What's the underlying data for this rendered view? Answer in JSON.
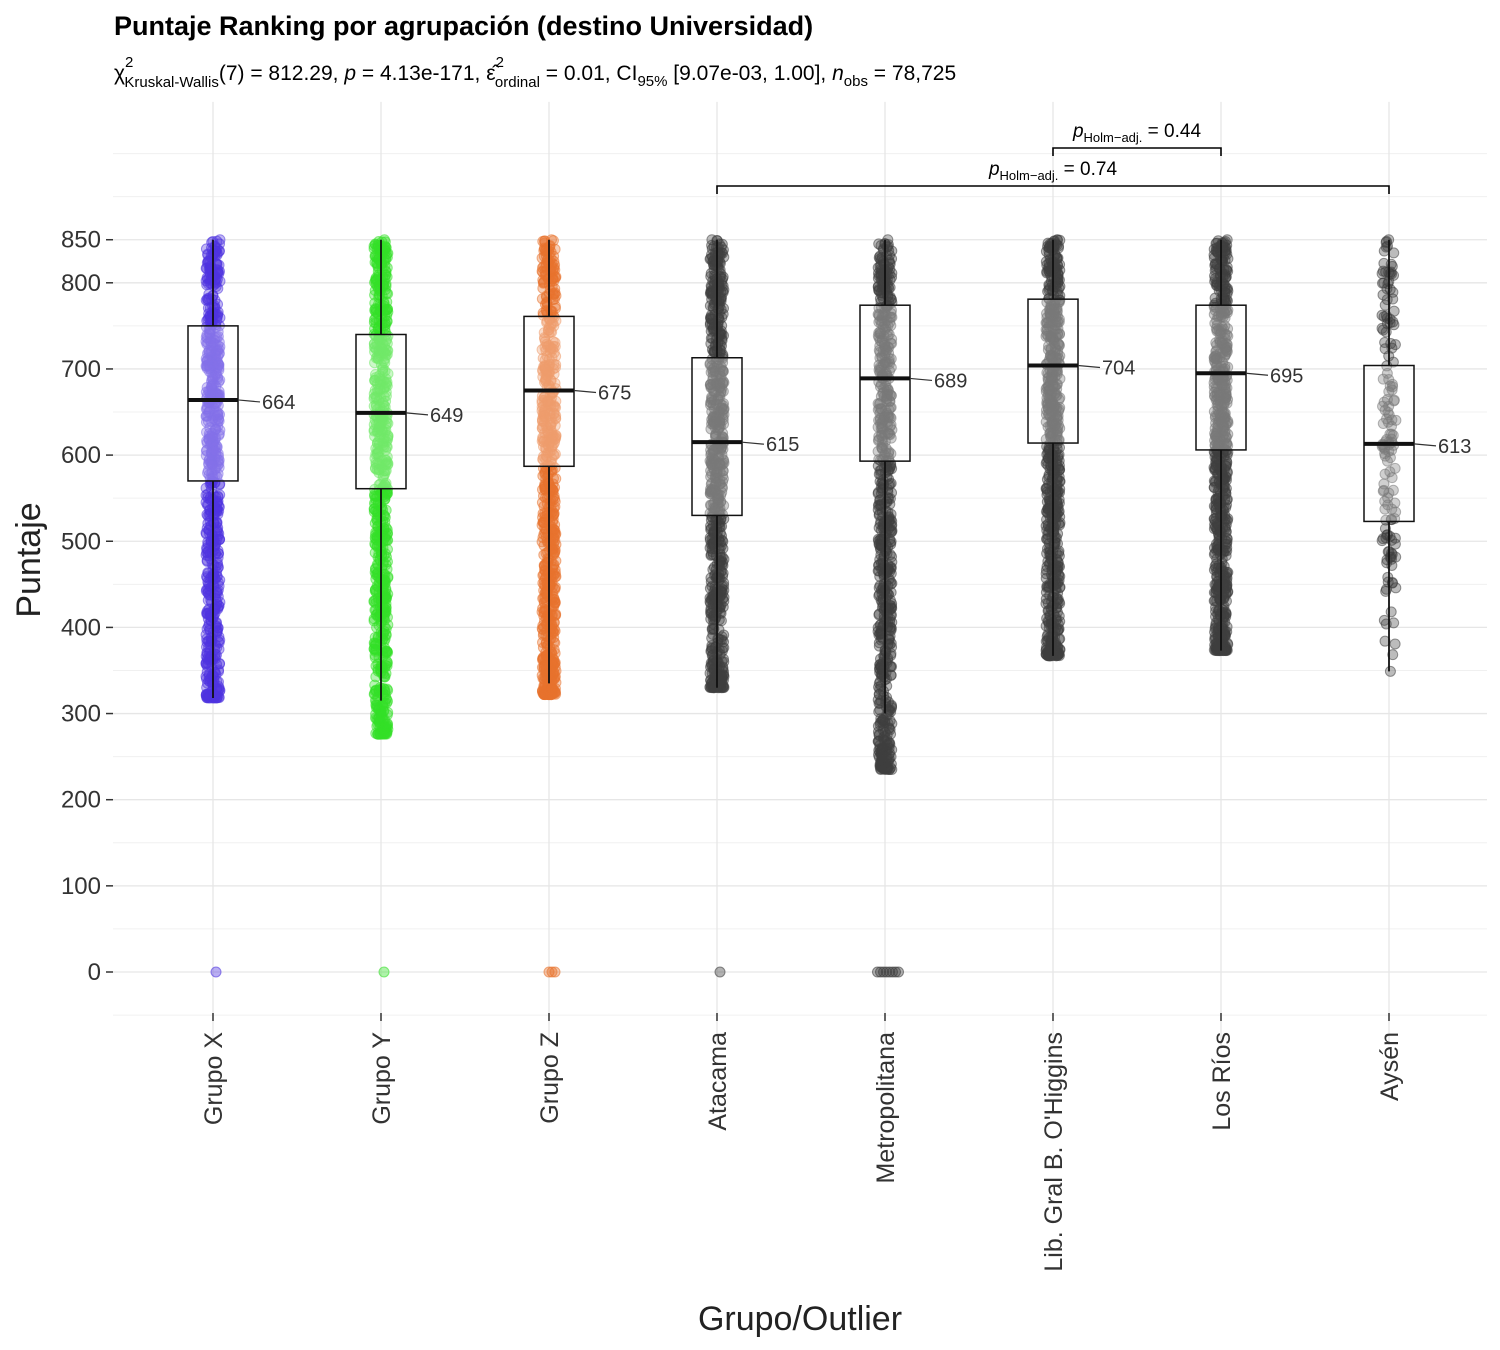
{
  "chart_data": {
    "type": "box",
    "title": "Puntaje Ranking por agrupación (destino Universidad)",
    "subtitle": {
      "chi": "χ",
      "chi_sup": "2",
      "chi_sub": "Kruskal-Wallis",
      "part1": "(7) = 812.29, ",
      "p": "p",
      "part2": " = 4.13e-171, ",
      "eps": "ε̂",
      "eps_sup": "2",
      "eps_sub": "ordinal",
      "part3": " = 0.01, CI",
      "ci_sub": "95%",
      "part4": " [9.07e-03, 1.00], ",
      "n": "n",
      "n_sub": "obs",
      "part5": " = 78,725"
    },
    "xlabel": "Grupo/Outlier",
    "ylabel": "Puntaje",
    "ylim": [
      -50,
      1010
    ],
    "yticks": [
      0,
      100,
      200,
      300,
      400,
      500,
      600,
      700,
      800,
      850
    ],
    "categories": [
      "Grupo X",
      "Grupo Y",
      "Grupo Z",
      "Atacama",
      "Metropolitana",
      "Lib. Gral B. O'Higgins",
      "Los Ríos",
      "Aysén"
    ],
    "series": [
      {
        "category": "Grupo X",
        "color": "#4f35e0",
        "median": 664,
        "q1": 570,
        "q3": 750,
        "whisker_low": 318,
        "whisker_high": 850,
        "points_min": 318,
        "points_max": 850,
        "dense_low": 410,
        "zero_points": 1,
        "median_label": "664"
      },
      {
        "category": "Grupo Y",
        "color": "#35e028",
        "median": 649,
        "q1": 561,
        "q3": 740,
        "whisker_low": 315,
        "whisker_high": 850,
        "points_min": 276,
        "points_max": 850,
        "dense_low": 380,
        "zero_points": 1,
        "median_label": "649"
      },
      {
        "category": "Grupo Z",
        "color": "#e8732d",
        "median": 675,
        "q1": 587,
        "q3": 761,
        "whisker_low": 335,
        "whisker_high": 850,
        "points_min": 322,
        "points_max": 850,
        "dense_low": 370,
        "zero_points": 3,
        "median_label": "675"
      },
      {
        "category": "Atacama",
        "color": "#3f3f3f",
        "median": 615,
        "q1": 530,
        "q3": 713,
        "whisker_low": 330,
        "whisker_high": 850,
        "points_min": 330,
        "points_max": 850,
        "dense_low": 420,
        "zero_points": 1,
        "median_label": "615"
      },
      {
        "category": "Metropolitana",
        "color": "#3f3f3f",
        "median": 689,
        "q1": 593,
        "q3": 774,
        "whisker_low": 300,
        "whisker_high": 850,
        "points_min": 235,
        "points_max": 850,
        "dense_low": 340,
        "zero_points": 8,
        "median_label": "689"
      },
      {
        "category": "Lib. Gral B. O'Higgins",
        "color": "#3f3f3f",
        "median": 704,
        "q1": 614,
        "q3": 781,
        "whisker_low": 367,
        "whisker_high": 850,
        "points_min": 367,
        "points_max": 850,
        "dense_low": 450,
        "zero_points": 0,
        "median_label": "704"
      },
      {
        "category": "Los Ríos",
        "color": "#3f3f3f",
        "median": 695,
        "q1": 606,
        "q3": 774,
        "whisker_low": 373,
        "whisker_high": 850,
        "points_min": 373,
        "points_max": 850,
        "dense_low": 440,
        "zero_points": 0,
        "median_label": "695"
      },
      {
        "category": "Aysén",
        "color": "#3f3f3f",
        "median": 613,
        "q1": 523,
        "q3": 704,
        "whisker_low": 349,
        "whisker_high": 850,
        "points_min": 349,
        "points_max": 850,
        "dense_low": 9999,
        "zero_points": 0,
        "median_label": "613"
      }
    ],
    "comparisons": [
      {
        "from": "Lib. Gral B. O'Higgins",
        "to": "Los Ríos",
        "p": "p",
        "sub": "Holm−adj.",
        "value": " = 0.44"
      },
      {
        "from": "Atacama",
        "to": "Aysén",
        "p": "p",
        "sub": "Holm−adj.",
        "value": " = 0.74"
      }
    ],
    "grid": true,
    "legend": "none"
  }
}
